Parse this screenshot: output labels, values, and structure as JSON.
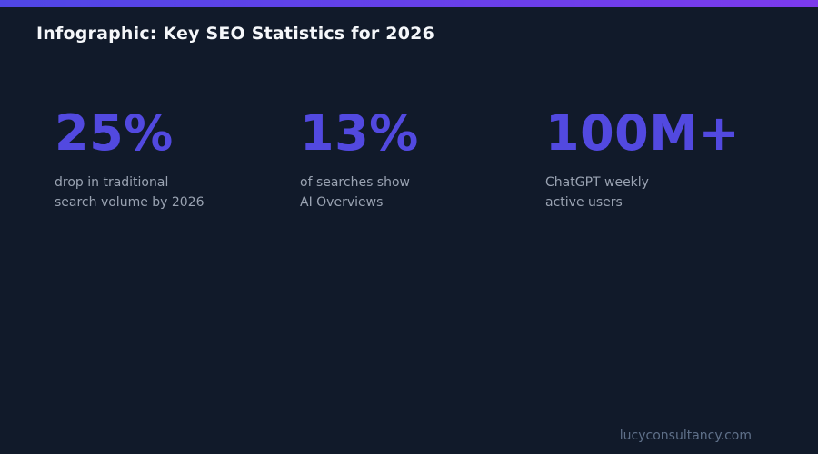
{
  "page": {
    "title": "Infographic: Key SEO Statistics for 2026",
    "footer_url": "lucyconsultancy.com"
  },
  "colors": {
    "background": "#111a2a",
    "top_bar_gradient_start": "#4f46e5",
    "top_bar_gradient_end": "#7c3aed",
    "stat_value": "#5249e0",
    "stat_label": "#9aa3b2",
    "title_text": "#f5f7fa",
    "footer_text": "#5f7089"
  },
  "stats": [
    {
      "value": "25%",
      "label_line1": "drop in traditional",
      "label_line2": "search volume by 2026"
    },
    {
      "value": "13%",
      "label_line1": "of searches show",
      "label_line2": "AI Overviews"
    },
    {
      "value": "100M+",
      "label_line1": "ChatGPT weekly",
      "label_line2": "active users"
    }
  ],
  "chart_data": {
    "type": "table",
    "title": "Infographic: Key SEO Statistics for 2026",
    "items": [
      {
        "value": "25%",
        "label": "drop in traditional search volume by 2026"
      },
      {
        "value": "13%",
        "label": "of searches show AI Overviews"
      },
      {
        "value": "100M+",
        "label": "ChatGPT weekly active users"
      }
    ],
    "legend": "none",
    "grid": false,
    "source": "lucyconsultancy.com"
  }
}
